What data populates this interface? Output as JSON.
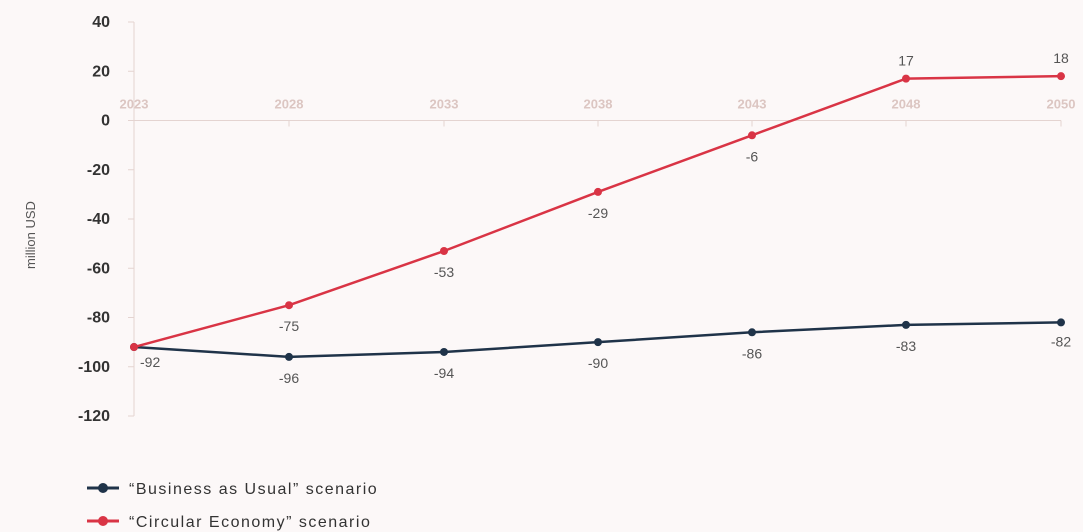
{
  "chart_data": {
    "type": "line",
    "title": "",
    "xlabel": "",
    "ylabel": "million USD",
    "x": [
      "2023",
      "2028",
      "2033",
      "2038",
      "2043",
      "2048",
      "2050"
    ],
    "ylim": [
      -120,
      40
    ],
    "yticks": [
      40,
      20,
      0,
      -20,
      -40,
      -60,
      -80,
      -100,
      -120
    ],
    "grid": false,
    "legend_position": "bottom-left",
    "series": [
      {
        "name": "“Business as Usual” scenario",
        "color": "#1f3349",
        "values": [
          -92,
          -96,
          -94,
          -90,
          -86,
          -83,
          -82
        ],
        "labels": [
          "-92",
          "-96",
          "-94",
          "-90",
          "-86",
          "-83",
          "-82"
        ]
      },
      {
        "name": "“Circular Economy” scenario",
        "color": "#d93445",
        "values": [
          -92,
          -75,
          -53,
          -29,
          -6,
          17,
          18
        ],
        "labels": [
          "",
          "-75",
          "-53",
          "-29",
          "-6",
          "17",
          "18"
        ]
      }
    ]
  }
}
